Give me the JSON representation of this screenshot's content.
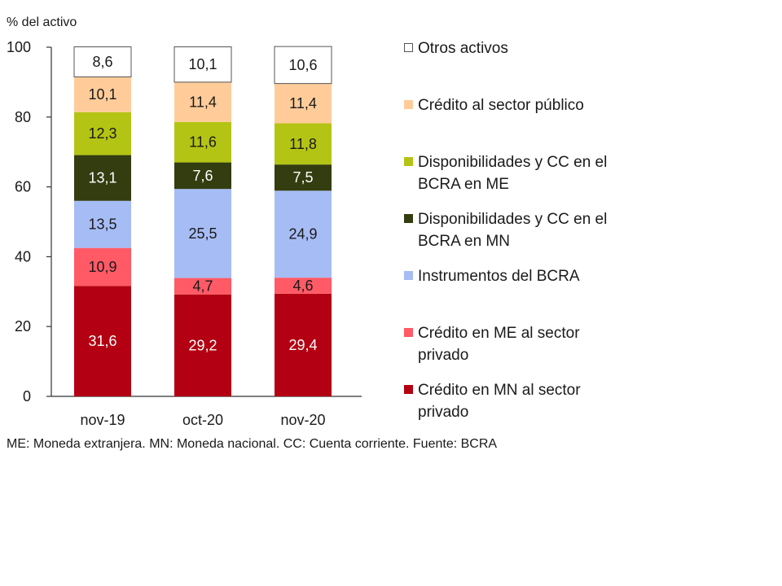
{
  "chart_data": {
    "type": "bar",
    "stacked": true,
    "ylabel": "% del activo",
    "ylim": [
      0,
      100
    ],
    "yticks": [
      0,
      20,
      40,
      60,
      80,
      100
    ],
    "categories": [
      "nov-19",
      "oct-20",
      "nov-20"
    ],
    "series": [
      {
        "name": "Crédito en MN al sector privado",
        "color": "#b30012",
        "text_color": "#ffffff",
        "labels": [
          "31,6",
          "29,2",
          "29,4"
        ],
        "values": [
          31.6,
          29.2,
          29.4
        ]
      },
      {
        "name": "Crédito en ME al sector privado",
        "color": "#ff5a66",
        "text_color": "#1a1a1a",
        "labels": [
          "10,9",
          "4,7",
          "4,6"
        ],
        "values": [
          10.9,
          4.7,
          4.6
        ]
      },
      {
        "name": "Instrumentos del BCRA",
        "color": "#a6bcf5",
        "text_color": "#1a1a1a",
        "labels": [
          "13,5",
          "25,5",
          "24,9"
        ],
        "values": [
          13.5,
          25.5,
          24.9
        ]
      },
      {
        "name": "Disponibilidades y CC en el BCRA en MN",
        "color": "#333d10",
        "text_color": "#ffffff",
        "labels": [
          "13,1",
          "7,6",
          "7,5"
        ],
        "values": [
          13.1,
          7.6,
          7.5
        ]
      },
      {
        "name": "Disponibilidades y CC en el BCRA en ME",
        "color": "#b4c414",
        "text_color": "#1a1a1a",
        "labels": [
          "12,3",
          "11,6",
          "11,8"
        ],
        "values": [
          12.3,
          11.6,
          11.8
        ]
      },
      {
        "name": "Crédito al sector público",
        "color": "#ffcc99",
        "text_color": "#1a1a1a",
        "labels": [
          "10,1",
          "11,4",
          "11,4"
        ],
        "values": [
          10.1,
          11.4,
          11.4
        ]
      },
      {
        "name": "Otros activos",
        "color": "#ffffff",
        "text_color": "#1a1a1a",
        "labels": [
          "8,6",
          "10,1",
          "10,6"
        ],
        "values": [
          8.6,
          10.1,
          10.6
        ]
      }
    ],
    "legend": {
      "position": "right",
      "items": [
        {
          "lines": [
            "Otros activos"
          ],
          "color": "#ffffff"
        },
        {
          "lines": [
            "Crédito al sector público"
          ],
          "color": "#ffcc99"
        },
        {
          "lines": [
            "Disponibilidades y CC en el",
            "BCRA en ME"
          ],
          "color": "#b4c414"
        },
        {
          "lines": [
            "Disponibilidades y CC en el",
            "BCRA en MN"
          ],
          "color": "#333d10"
        },
        {
          "lines": [
            "Instrumentos del BCRA"
          ],
          "color": "#a6bcf5"
        },
        {
          "lines": [
            "Crédito en ME al sector",
            "privado"
          ],
          "color": "#ff5a66"
        },
        {
          "lines": [
            "Crédito en MN al sector",
            "privado"
          ],
          "color": "#b30012"
        }
      ]
    }
  },
  "footnote": "ME: Moneda extranjera. MN: Moneda nacional. CC: Cuenta corriente. Fuente: BCRA"
}
